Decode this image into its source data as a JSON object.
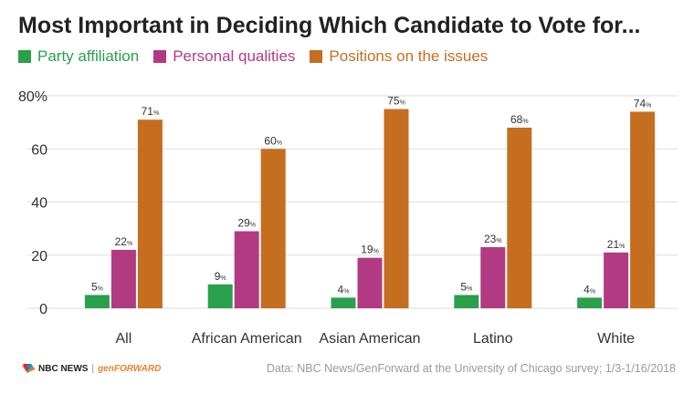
{
  "title": "Most Important in Deciding Which Candidate to Vote for...",
  "colors": {
    "party": "#2aa04c",
    "personal": "#b23a83",
    "positions": "#c56e20",
    "grid": "#dddddd",
    "axis_text": "#333333"
  },
  "footer": {
    "logo_nbc": "NBC NEWS",
    "logo_sep": "|",
    "logo_gen": "genFORWARD",
    "source": "Data: NBC News/GenForward at the University of Chicago survey; 1/3-1/16/2018"
  },
  "chart_data": {
    "type": "bar",
    "categories": [
      "All",
      "African American",
      "Asian American",
      "Latino",
      "White"
    ],
    "series": [
      {
        "name": "Party affiliation",
        "values": [
          5,
          9,
          4,
          5,
          4
        ]
      },
      {
        "name": "Personal qualities",
        "values": [
          22,
          29,
          19,
          23,
          21
        ]
      },
      {
        "name": "Positions on the issues",
        "values": [
          71,
          60,
          75,
          68,
          74
        ]
      }
    ],
    "ylim": [
      0,
      80
    ],
    "yticks": [
      "0",
      "20",
      "40",
      "60",
      "80%"
    ],
    "value_suffix": "%",
    "grid": true,
    "legend_position": "top-left"
  }
}
